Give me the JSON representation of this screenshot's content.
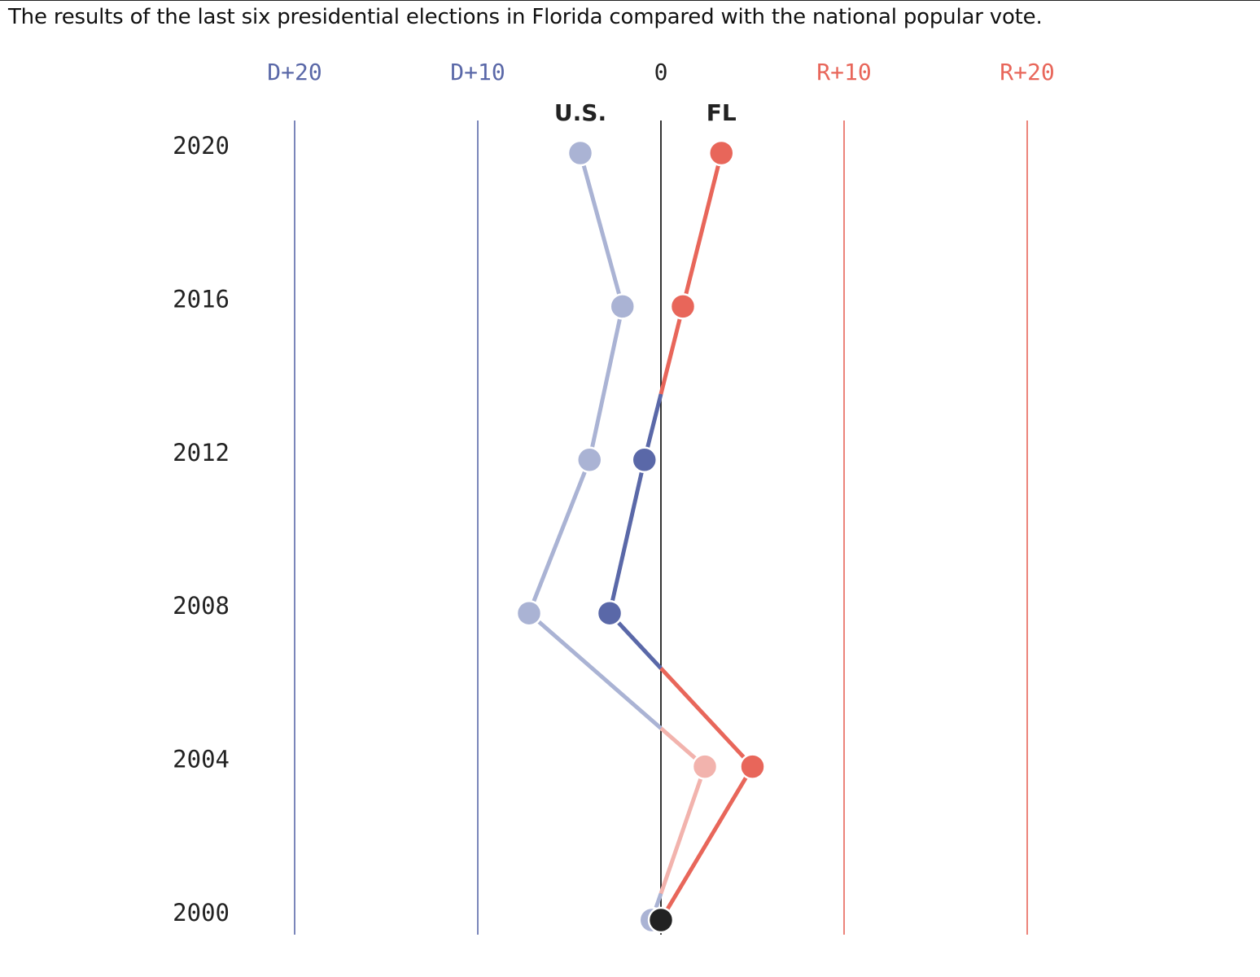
{
  "subtitle": "The results of the last six presidential elections in Florida compared with the national popular vote.",
  "colors": {
    "dem": "#5a68a8",
    "rep": "#e8665a",
    "dem_light": "#aab3d4",
    "rep_light": "#f2b3ad",
    "neutral": "#222222"
  },
  "chart_data": {
    "type": "line",
    "orientation": "vertical",
    "x_axis": {
      "unit": "margin (points); negative = D, positive = R",
      "xlim": [
        -20,
        20
      ],
      "ticks": [
        {
          "value": -20,
          "label": "D+20",
          "party": "dem"
        },
        {
          "value": -10,
          "label": "D+10",
          "party": "dem"
        },
        {
          "value": 0,
          "label": "0",
          "party": "neutral"
        },
        {
          "value": 10,
          "label": "R+10",
          "party": "rep"
        },
        {
          "value": 20,
          "label": "R+20",
          "party": "rep"
        }
      ]
    },
    "years": [
      "2020",
      "2016",
      "2012",
      "2008",
      "2004",
      "2000"
    ],
    "series": [
      {
        "name": "U.S.",
        "values": [
          -4.4,
          -2.1,
          -3.9,
          -7.2,
          2.4,
          -0.5
        ]
      },
      {
        "name": "FL",
        "values": [
          3.3,
          1.2,
          -0.9,
          -2.8,
          5.0,
          0.0
        ]
      }
    ]
  }
}
